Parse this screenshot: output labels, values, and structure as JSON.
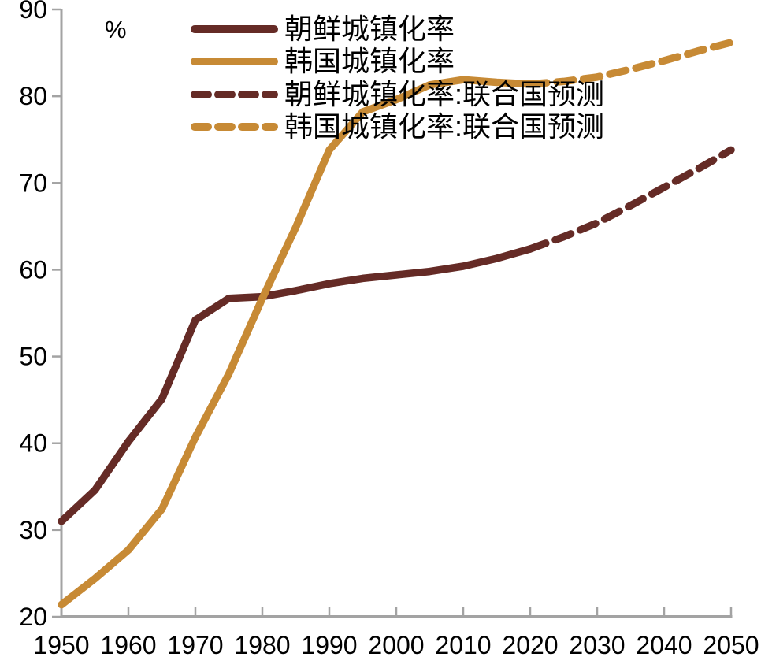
{
  "chart_data": {
    "type": "line",
    "title": "",
    "unit_label": "%",
    "xlabel": "",
    "ylabel": "%",
    "xlim": [
      1950,
      2050
    ],
    "ylim": [
      20,
      90
    ],
    "x_ticks": [
      1950,
      1960,
      1970,
      1980,
      1990,
      2000,
      2010,
      2020,
      2030,
      2040,
      2050
    ],
    "y_ticks": [
      20,
      30,
      40,
      50,
      60,
      70,
      80,
      90
    ],
    "grid": false,
    "legend_position": "top-left-inside",
    "axis_color": "#A3A3A3",
    "text_color": "#000000",
    "series": [
      {
        "name": "朝鲜城镇化率",
        "color": "#652B26",
        "style": "solid",
        "x": [
          1950,
          1955,
          1960,
          1965,
          1970,
          1975,
          1980,
          1985,
          1990,
          1995,
          2000,
          2005,
          2010,
          2015,
          2020
        ],
        "values": [
          31.0,
          34.6,
          40.2,
          45.1,
          54.2,
          56.7,
          56.9,
          57.6,
          58.4,
          59.0,
          59.4,
          59.8,
          60.4,
          61.3,
          62.4
        ]
      },
      {
        "name": "韩国城镇化率",
        "color": "#C78A35",
        "style": "solid",
        "x": [
          1950,
          1955,
          1960,
          1965,
          1970,
          1975,
          1980,
          1985,
          1990,
          1995,
          2000,
          2005,
          2010,
          2015,
          2020
        ],
        "values": [
          21.4,
          24.4,
          27.7,
          32.4,
          40.7,
          48.0,
          56.7,
          64.9,
          73.8,
          78.2,
          79.6,
          81.3,
          81.9,
          81.6,
          81.4
        ]
      },
      {
        "name": "朝鲜城镇化率:联合国预测",
        "color": "#652B26",
        "style": "dashed",
        "x": [
          2020,
          2025,
          2030,
          2035,
          2040,
          2045,
          2050
        ],
        "values": [
          62.4,
          63.8,
          65.4,
          67.4,
          69.5,
          71.6,
          73.8
        ]
      },
      {
        "name": "韩国城镇化率:联合国预测",
        "color": "#C78A35",
        "style": "dashed",
        "x": [
          2020,
          2025,
          2030,
          2035,
          2040,
          2045,
          2050
        ],
        "values": [
          81.4,
          81.7,
          82.2,
          83.1,
          84.1,
          85.2,
          86.2
        ]
      }
    ]
  }
}
